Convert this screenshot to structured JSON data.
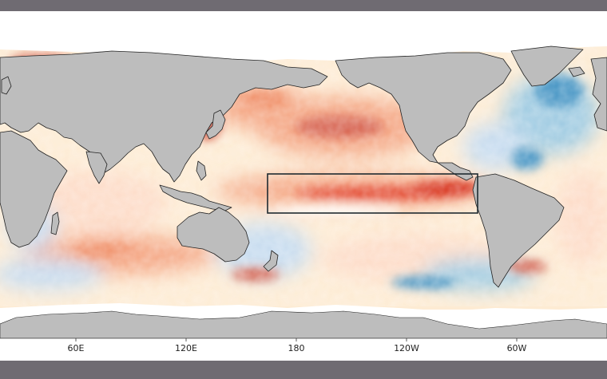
{
  "map": {
    "type": "global sea surface temperature anomaly map",
    "projection": "equirectangular, Pacific-centered",
    "x_axis_ticks": [
      "60E",
      "120E",
      "180",
      "120W",
      "60W"
    ],
    "highlighted_region": "Niño 3.4 region box (central-eastern equatorial Pacific)",
    "colors": {
      "land": "#bdbdbd",
      "sea_ice": "#ffffff",
      "warm_strong": "#d7301f",
      "warm": "#fc8d59",
      "warm_light": "#fee8c8",
      "cool_light": "#deebf7",
      "cool": "#9ecae1",
      "cool_strong": "#2171b5",
      "frame": "#6f6b72",
      "box_outline": "#1f2a30"
    }
  }
}
